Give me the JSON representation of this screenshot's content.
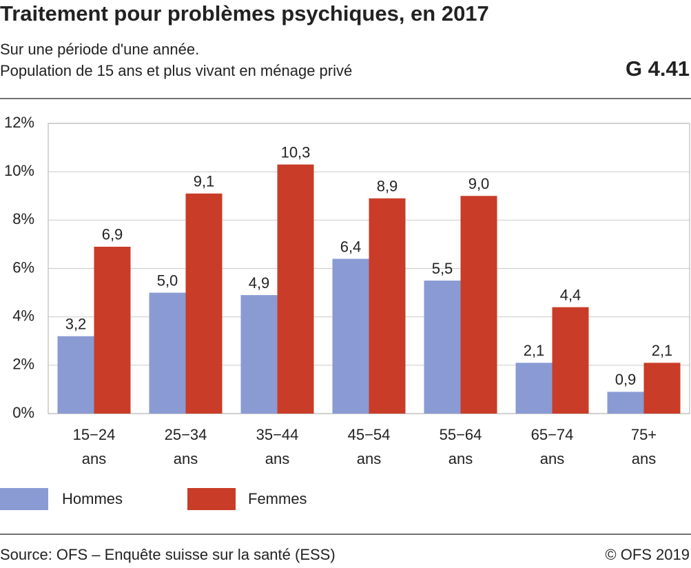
{
  "chart_data": {
    "type": "bar",
    "title": "Traitement pour problèmes psychiques, en 2017",
    "subtitle": [
      "Sur une période d'une année.",
      "Population de 15 ans et plus vivant en ménage privé"
    ],
    "chart_id": "G 4.41",
    "categories": [
      [
        "15−24",
        "ans"
      ],
      [
        "25−34",
        "ans"
      ],
      [
        "35−44",
        "ans"
      ],
      [
        "45−54",
        "ans"
      ],
      [
        "55−64",
        "ans"
      ],
      [
        "65−74",
        "ans"
      ],
      [
        "75+",
        "ans"
      ]
    ],
    "series": [
      {
        "name": "Hommes",
        "color": "#8a9bd3",
        "values": [
          3.2,
          5.0,
          4.9,
          6.4,
          5.5,
          2.1,
          0.9
        ],
        "value_labels": [
          "3,2",
          "5,0",
          "4,9",
          "6,4",
          "5,5",
          "2,1",
          "0,9"
        ]
      },
      {
        "name": "Femmes",
        "color": "#c93c27",
        "values": [
          6.9,
          9.1,
          10.3,
          8.9,
          9.0,
          4.4,
          2.1
        ],
        "value_labels": [
          "6,9",
          "9,1",
          "10,3",
          "8,9",
          "9,0",
          "4,4",
          "2,1"
        ]
      }
    ],
    "ylim": [
      0,
      12
    ],
    "yticks": [
      {
        "value": 0,
        "label": "0%"
      },
      {
        "value": 2,
        "label": "2%"
      },
      {
        "value": 4,
        "label": "4%"
      },
      {
        "value": 6,
        "label": "6%"
      },
      {
        "value": 8,
        "label": "8%"
      },
      {
        "value": 10,
        "label": "10%"
      },
      {
        "value": 12,
        "label": "12%"
      }
    ],
    "grid": true,
    "source": "Source: OFS – Enquête suisse sur la santé (ESS)",
    "copyright": "© OFS 2019"
  }
}
